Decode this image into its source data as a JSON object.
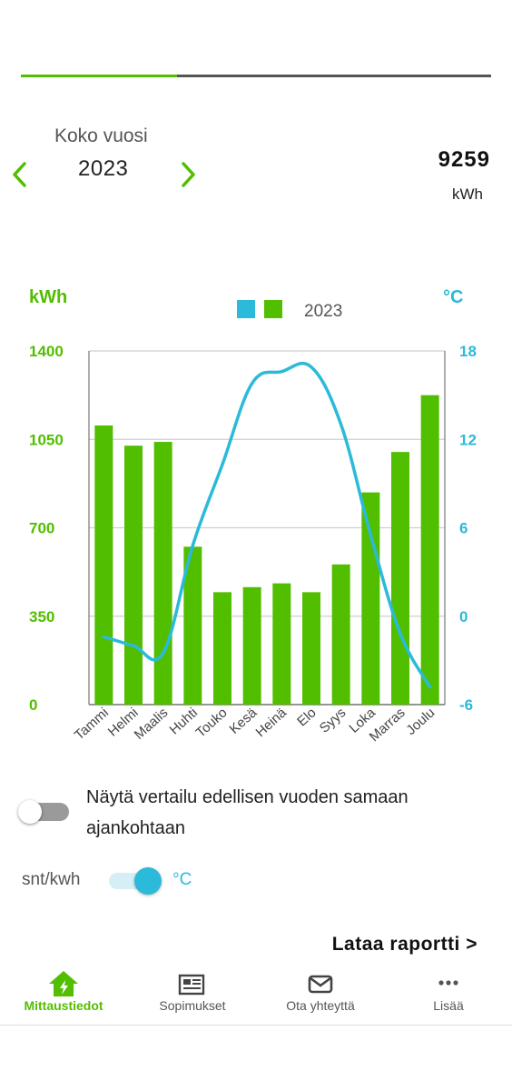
{
  "progress": {
    "fraction": 0.333
  },
  "period": {
    "label": "Koko vuosi",
    "year": "2023",
    "total_value": "9259",
    "total_unit": "kWh"
  },
  "chart_data": {
    "type": "bar",
    "categories": [
      "Tammi",
      "Helmi",
      "Maalis",
      "Huhti",
      "Touko",
      "Kesä",
      "Heinä",
      "Elo",
      "Syys",
      "Loka",
      "Marras",
      "Joulu"
    ],
    "series": [
      {
        "name": "2023",
        "type": "bar",
        "axis": "left",
        "color": "#52be00",
        "values": [
          1105,
          1025,
          1040,
          625,
          445,
          465,
          480,
          445,
          555,
          840,
          1000,
          1225
        ]
      },
      {
        "name": "2023",
        "type": "line",
        "axis": "right",
        "color": "#2bbad9",
        "values": [
          -1.4,
          -2.0,
          -2.5,
          4.8,
          10.3,
          15.8,
          16.6,
          16.9,
          13.0,
          5.5,
          -1.2,
          -4.8
        ]
      }
    ],
    "yleft": {
      "label": "kWh",
      "ylim": [
        0,
        1400
      ],
      "ticks": [
        "0",
        "350",
        "700",
        "1050",
        "1400"
      ]
    },
    "yright": {
      "label": "°C",
      "ylim": [
        -6,
        18
      ],
      "ticks": [
        "-6",
        "0",
        "6",
        "12",
        "18"
      ]
    },
    "legend": {
      "text": "2023",
      "position": "top-center",
      "swatches": [
        "#2bbad9",
        "#52be00"
      ]
    },
    "grid": true
  },
  "compare": {
    "text": "Näytä vertailu edellisen vuoden samaan ajankohtaan",
    "enabled": false
  },
  "unit_toggle": {
    "left_label": "snt/kwh",
    "right_label": "°C",
    "selected": "°C"
  },
  "report_link": "Lataa raportti >",
  "nav": {
    "items": [
      {
        "label": "Mittaustiedot",
        "icon": "home-lightning-icon",
        "active": true
      },
      {
        "label": "Sopimukset",
        "icon": "newspaper-icon",
        "active": false
      },
      {
        "label": "Ota yhteyttä",
        "icon": "envelope-icon",
        "active": false
      },
      {
        "label": "Lisää",
        "icon": "more-dots-icon",
        "active": false
      }
    ]
  },
  "colors": {
    "accent": "#52be00",
    "temperature": "#2bbad9"
  }
}
